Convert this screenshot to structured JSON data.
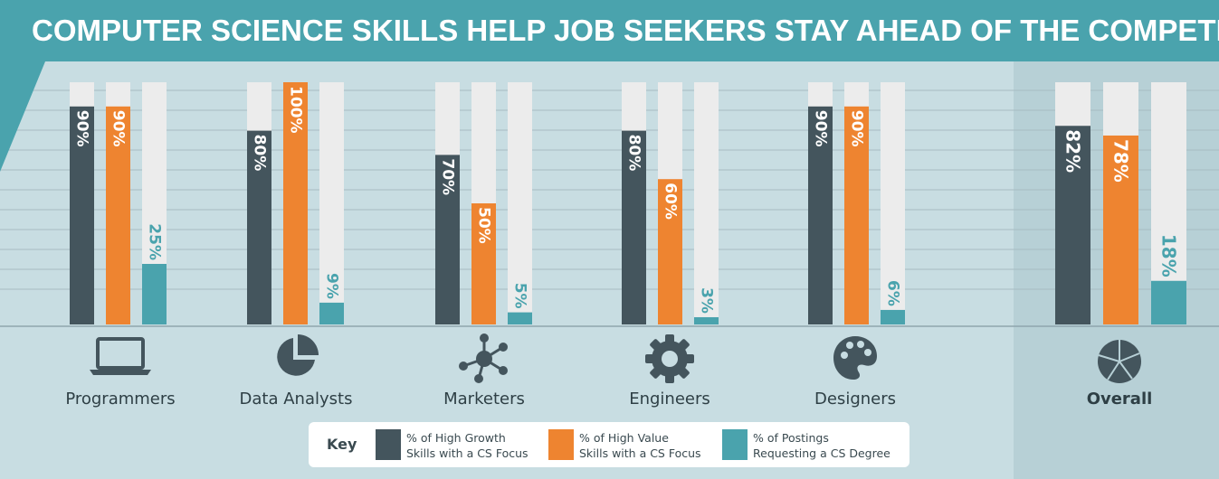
{
  "title": "COMPUTER SCIENCE SKILLS HELP JOB SEEKERS STAY AHEAD OF THE COMPETITION",
  "colors": {
    "banner": "#4aa3ad",
    "background": "#c8dde2",
    "overall_background": "#b7d0d6",
    "track": "#ececec",
    "high_growth": "#44555d",
    "high_value": "#ee8430",
    "cs_degree": "#4aa3ad",
    "label_text": "#2e3f45"
  },
  "key": {
    "title": "Key",
    "items": [
      {
        "line1": "% of High Growth",
        "line2": "Skills with a CS Focus",
        "color": "#44555d"
      },
      {
        "line1": "% of High Value",
        "line2": "Skills with a CS Focus",
        "color": "#ee8430"
      },
      {
        "line1": "% of Postings",
        "line2": "Requesting a CS Degree",
        "color": "#4aa3ad"
      }
    ]
  },
  "chart_data": {
    "type": "bar",
    "ylim": [
      0,
      100
    ],
    "categories": [
      "Programmers",
      "Data Analysts",
      "Marketers",
      "Engineers",
      "Designers",
      "Overall"
    ],
    "category_icons": [
      "laptop-icon",
      "pie-chart-icon",
      "network-icon",
      "gear-icon",
      "palette-icon",
      "pie-chart-icon"
    ],
    "series": [
      {
        "name": "% of High Growth Skills with a CS Focus",
        "values": [
          90,
          80,
          70,
          80,
          90,
          82
        ]
      },
      {
        "name": "% of High Value Skills with a CS Focus",
        "values": [
          90,
          100,
          50,
          60,
          90,
          78
        ]
      },
      {
        "name": "% of Postings Requesting a CS Degree",
        "values": [
          25,
          9,
          5,
          3,
          6,
          18
        ]
      }
    ],
    "value_suffix": "%",
    "grid": true
  }
}
